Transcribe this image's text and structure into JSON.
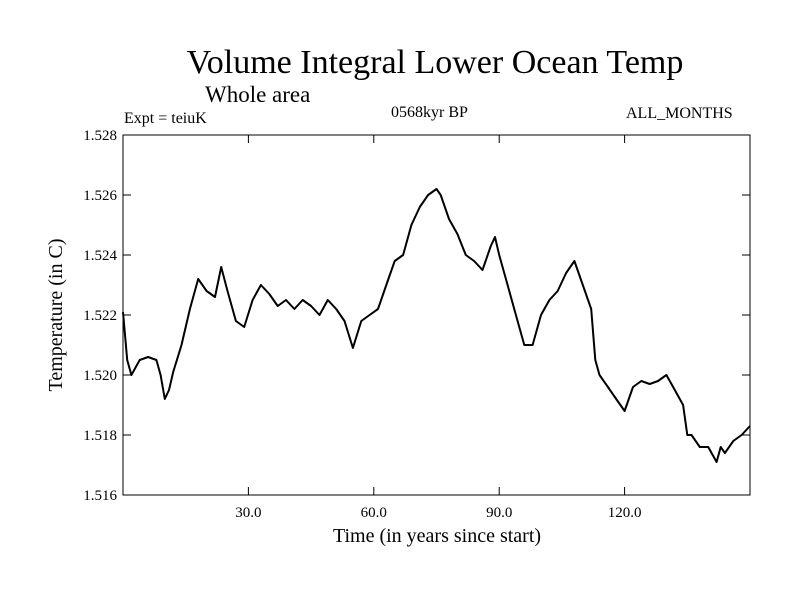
{
  "chart_data": {
    "type": "line",
    "title": "Volume Integral Lower Ocean Temp",
    "subtitle": "Whole area",
    "experiment": "Expt = teiuK",
    "period": "0568kyr BP",
    "months": "ALL_MONTHS",
    "xlabel": "Time (in years since start)",
    "ylabel": "Temperature (in C)",
    "xlim": [
      0,
      150
    ],
    "ylim": [
      1.516,
      1.528
    ],
    "xticks": [
      30,
      60,
      90,
      120
    ],
    "xtick_labels": [
      "30.0",
      "60.0",
      "90.0",
      "120.0"
    ],
    "yticks": [
      1.516,
      1.518,
      1.52,
      1.522,
      1.524,
      1.526,
      1.528
    ],
    "ytick_labels": [
      "1.516",
      "1.518",
      "1.520",
      "1.522",
      "1.524",
      "1.526",
      "1.528"
    ],
    "grid": false,
    "series": [
      {
        "name": "Volume Integral Lower Ocean Temp",
        "x": [
          0,
          1,
          2,
          4,
          6,
          8,
          9,
          10,
          11,
          12,
          14,
          16,
          18,
          20,
          22,
          23.5,
          25,
          27,
          29,
          31,
          33,
          35,
          37,
          39,
          41,
          43,
          45,
          47,
          49,
          51,
          53,
          55,
          57,
          59,
          61,
          63,
          65,
          67,
          69,
          71,
          73,
          75,
          76,
          78,
          80,
          82,
          84,
          86,
          88,
          89,
          90,
          92,
          94,
          96,
          98,
          100,
          102,
          104,
          106,
          108,
          110,
          112,
          113,
          114,
          116,
          118,
          120,
          122,
          124,
          126,
          128,
          130,
          132,
          134,
          135,
          136,
          138,
          140,
          142,
          143,
          144,
          146,
          148,
          150
        ],
        "values": [
          1.5221,
          1.5205,
          1.52,
          1.5205,
          1.5206,
          1.5205,
          1.52,
          1.5192,
          1.5195,
          1.5201,
          1.521,
          1.5222,
          1.5232,
          1.5228,
          1.5226,
          1.5236,
          1.5228,
          1.5218,
          1.5216,
          1.5225,
          1.523,
          1.5227,
          1.5223,
          1.5225,
          1.5222,
          1.5225,
          1.5223,
          1.522,
          1.5225,
          1.5222,
          1.5218,
          1.5209,
          1.5218,
          1.522,
          1.5222,
          1.523,
          1.5238,
          1.524,
          1.525,
          1.5256,
          1.526,
          1.5262,
          1.526,
          1.5252,
          1.5247,
          1.524,
          1.5238,
          1.5235,
          1.5243,
          1.5246,
          1.524,
          1.523,
          1.522,
          1.521,
          1.521,
          1.522,
          1.5225,
          1.5228,
          1.5234,
          1.5238,
          1.523,
          1.5222,
          1.5205,
          1.52,
          1.5196,
          1.5192,
          1.5188,
          1.5196,
          1.5198,
          1.5197,
          1.5198,
          1.52,
          1.5195,
          1.519,
          1.518,
          1.518,
          1.5176,
          1.5176,
          1.5171,
          1.5176,
          1.5174,
          1.5178,
          1.518,
          1.5183
        ]
      }
    ]
  }
}
